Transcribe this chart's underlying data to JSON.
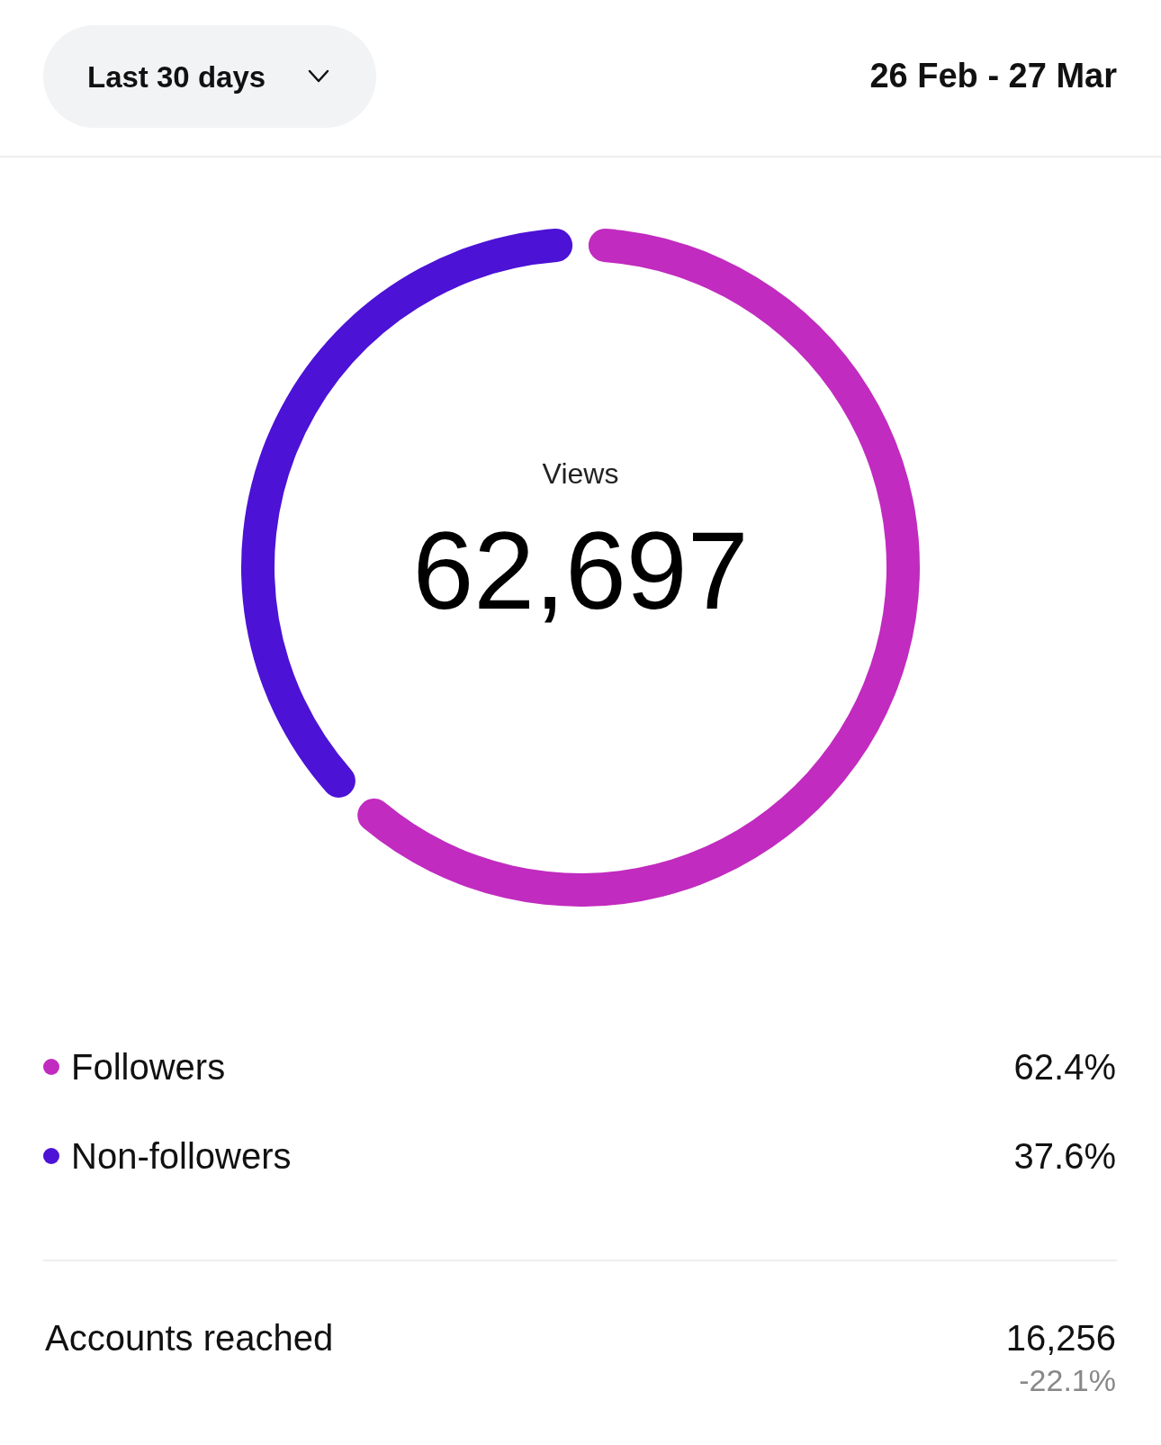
{
  "chart_data": {
    "type": "donut",
    "title": "Views",
    "categories": [
      "Followers",
      "Non-followers"
    ],
    "values": [
      62.4,
      37.6
    ],
    "colors": [
      "#c12bbf",
      "#4c12d6"
    ],
    "value_labels": [
      "62.4%",
      "37.6%"
    ],
    "legend": "bottom",
    "annotations": [
      "Last 30 days",
      "26 Feb - 27 Mar",
      "62,697",
      "Accounts reached",
      "16,256",
      "-22.1%"
    ]
  }
}
